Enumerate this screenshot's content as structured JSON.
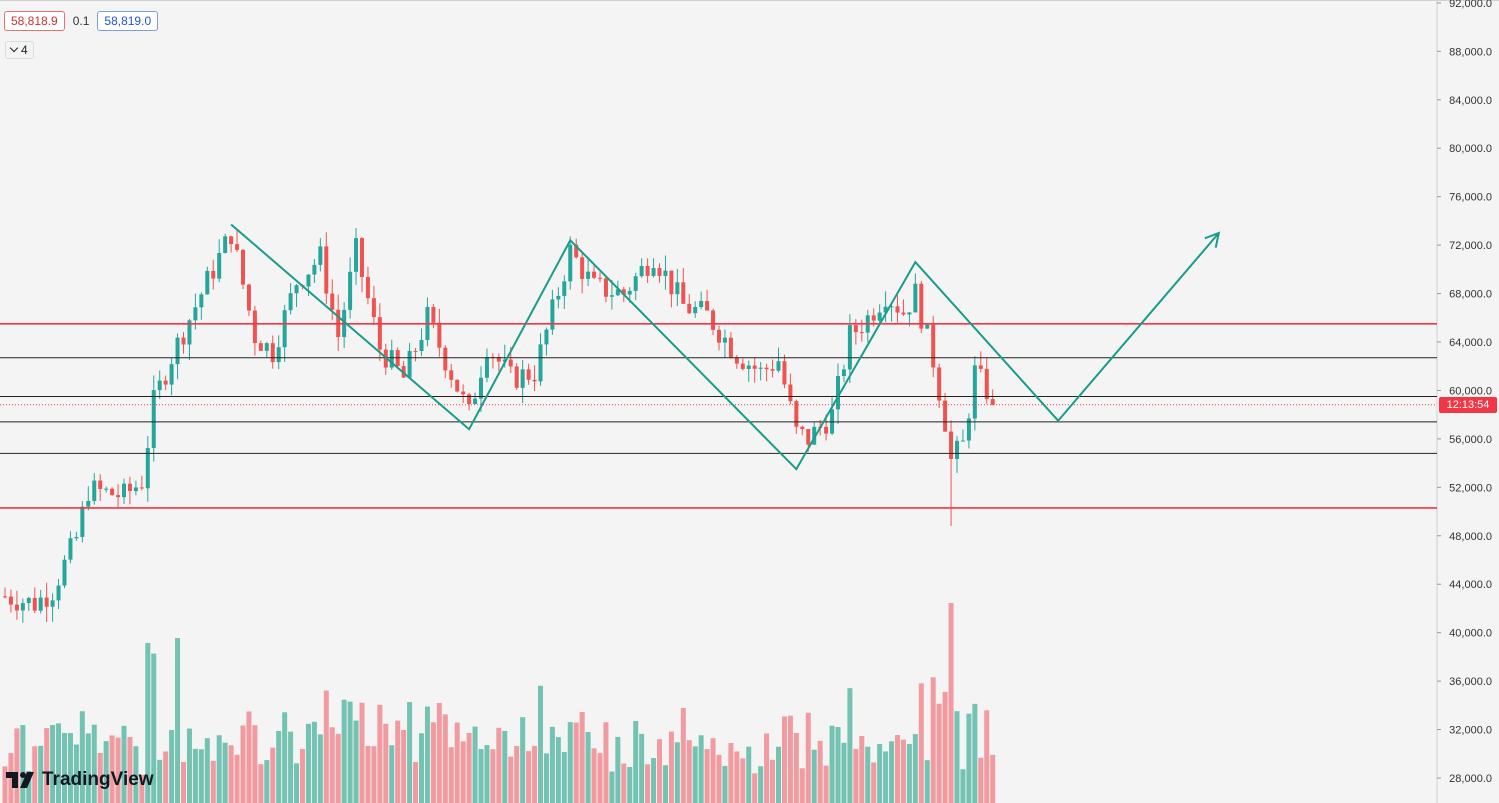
{
  "header": {
    "bid": "58,818.9",
    "spread": "0.1",
    "ask": "58,819.0"
  },
  "indicator_toggle": {
    "count": "4"
  },
  "countdown": "12:13:54",
  "logo": "TradingView",
  "colors": {
    "up": "#26a69a",
    "down": "#ef5350",
    "zigzag": "#1a9c8a",
    "resistance": "#f23645",
    "line": "#222222"
  },
  "chart_data": {
    "type": "candlestick",
    "y_axis": {
      "min": 27000,
      "max": 92000,
      "ticks": [
        "92,000.0",
        "88,000.0",
        "84,000.0",
        "80,000.0",
        "76,000.0",
        "72,000.0",
        "68,000.0",
        "64,000.0",
        "60,000.0",
        "56,000.0",
        "52,000.0",
        "48,000.0",
        "44,000.0",
        "40,000.0",
        "36,000.0",
        "32,000.0",
        "28,000.0"
      ]
    },
    "current_price": 58819,
    "horizontal_levels": [
      {
        "price": 65500,
        "color": "#f23645"
      },
      {
        "price": 62700,
        "color": "#222222"
      },
      {
        "price": 59500,
        "color": "#222222"
      },
      {
        "price": 57400,
        "color": "#222222"
      },
      {
        "price": 54800,
        "color": "#222222"
      },
      {
        "price": 50300,
        "color": "#f23645"
      }
    ],
    "zigzag": [
      {
        "i": 38,
        "p": 73700
      },
      {
        "i": 78,
        "p": 56800
      },
      {
        "i": 95,
        "p": 72400
      },
      {
        "i": 133,
        "p": 53500
      },
      {
        "i": 153,
        "p": 70600
      },
      {
        "i": 177,
        "p": 57500
      },
      {
        "i": 204,
        "p": 73000
      }
    ],
    "waypoints": [
      {
        "i": 0,
        "p": 43000
      },
      {
        "i": 5,
        "p": 42400
      },
      {
        "i": 8,
        "p": 43500
      },
      {
        "i": 12,
        "p": 47800
      },
      {
        "i": 14,
        "p": 51800
      },
      {
        "i": 20,
        "p": 51300
      },
      {
        "i": 23,
        "p": 52500
      },
      {
        "i": 25,
        "p": 59000
      },
      {
        "i": 28,
        "p": 62800
      },
      {
        "i": 33,
        "p": 68000
      },
      {
        "i": 38,
        "p": 73000
      },
      {
        "i": 42,
        "p": 64500
      },
      {
        "i": 45,
        "p": 63200
      },
      {
        "i": 49,
        "p": 69000
      },
      {
        "i": 53,
        "p": 71000
      },
      {
        "i": 56,
        "p": 64500
      },
      {
        "i": 59,
        "p": 71500
      },
      {
        "i": 63,
        "p": 63500
      },
      {
        "i": 67,
        "p": 61000
      },
      {
        "i": 71,
        "p": 66000
      },
      {
        "i": 78,
        "p": 58000
      },
      {
        "i": 81,
        "p": 63800
      },
      {
        "i": 85,
        "p": 61000
      },
      {
        "i": 89,
        "p": 61500
      },
      {
        "i": 92,
        "p": 66500
      },
      {
        "i": 95,
        "p": 71500
      },
      {
        "i": 99,
        "p": 68500
      },
      {
        "i": 104,
        "p": 68000
      },
      {
        "i": 109,
        "p": 71200
      },
      {
        "i": 114,
        "p": 67000
      },
      {
        "i": 118,
        "p": 66200
      },
      {
        "i": 123,
        "p": 63000
      },
      {
        "i": 127,
        "p": 61500
      },
      {
        "i": 130,
        "p": 62500
      },
      {
        "i": 133,
        "p": 56500
      },
      {
        "i": 135,
        "p": 56000
      },
      {
        "i": 139,
        "p": 58000
      },
      {
        "i": 142,
        "p": 64500
      },
      {
        "i": 145,
        "p": 66000
      },
      {
        "i": 148,
        "p": 68000
      },
      {
        "i": 151,
        "p": 66500
      },
      {
        "i": 153,
        "p": 68000
      },
      {
        "i": 156,
        "p": 62500
      },
      {
        "i": 158,
        "p": 57500
      },
      {
        "i": 159,
        "p": 54200
      },
      {
        "i": 161,
        "p": 55500
      },
      {
        "i": 163,
        "p": 61500
      },
      {
        "i": 165,
        "p": 60000
      },
      {
        "i": 166,
        "p": 59000
      }
    ]
  }
}
